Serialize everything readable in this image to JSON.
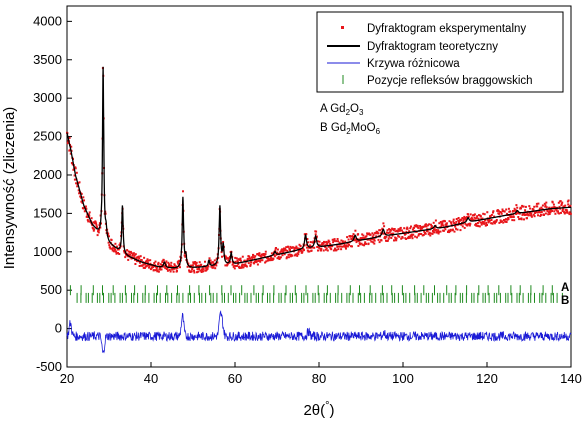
{
  "chart_data": {
    "type": "line",
    "xlabel_main": "2θ(",
    "xlabel_unit": "°",
    "xlabel_close": ")",
    "ylabel": "Intensywność (zliczenia)",
    "xlim": [
      20,
      140
    ],
    "ylim": [
      -500,
      4200
    ],
    "xticks": [
      20,
      40,
      60,
      80,
      100,
      120,
      140
    ],
    "yticks": [
      -500,
      0,
      500,
      1000,
      1500,
      2000,
      2500,
      3000,
      3500,
      4000
    ],
    "legend_position": "top-right",
    "colors": {
      "experimental": "#e8161b",
      "theoretical": "#000000",
      "difference": "#1a1ad6",
      "bragg": "#1f8a1f"
    },
    "legend": [
      "Dyfraktogram eksperymentalny",
      "Dyfraktogram teoretyczny",
      "Krzywa różnicowa",
      "Pozycje refleksów braggowskich"
    ],
    "phases": {
      "A": {
        "letter": "A",
        "label_prefix": "A Gd",
        "sub1": "2",
        "mid": "O",
        "sub2": "3",
        "suffix": "",
        "level": 500
      },
      "B": {
        "letter": "B",
        "label_prefix": "B Gd",
        "sub1": "2",
        "mid": "MoO",
        "sub2": "6",
        "suffix": "",
        "level": 400
      }
    },
    "background": {
      "x": [
        20,
        21,
        22,
        24,
        26,
        28,
        30,
        34,
        38,
        42,
        46,
        50,
        55,
        60,
        65,
        70,
        75,
        80,
        85,
        90,
        95,
        100,
        105,
        110,
        115,
        120,
        125,
        130,
        135,
        140
      ],
      "y": [
        2550,
        2300,
        2000,
        1600,
        1350,
        1200,
        1100,
        950,
        860,
        800,
        780,
        790,
        810,
        840,
        900,
        960,
        1020,
        1060,
        1100,
        1150,
        1200,
        1240,
        1280,
        1320,
        1380,
        1430,
        1480,
        1520,
        1560,
        1580
      ]
    },
    "peaks": [
      {
        "pos": 28.6,
        "height": 2230,
        "width": 0.18
      },
      {
        "pos": 29.3,
        "height": 120,
        "width": 0.2
      },
      {
        "pos": 33.2,
        "height": 620,
        "width": 0.18
      },
      {
        "pos": 43.2,
        "height": 70,
        "width": 0.25
      },
      {
        "pos": 47.6,
        "height": 920,
        "width": 0.2
      },
      {
        "pos": 48.3,
        "height": 140,
        "width": 0.2
      },
      {
        "pos": 53.8,
        "height": 80,
        "width": 0.2
      },
      {
        "pos": 56.4,
        "height": 770,
        "width": 0.2
      },
      {
        "pos": 57.2,
        "height": 250,
        "width": 0.2
      },
      {
        "pos": 59.1,
        "height": 150,
        "width": 0.22
      },
      {
        "pos": 69.5,
        "height": 50,
        "width": 0.25
      },
      {
        "pos": 76.8,
        "height": 180,
        "width": 0.28
      },
      {
        "pos": 79.2,
        "height": 150,
        "width": 0.28
      },
      {
        "pos": 88.6,
        "height": 80,
        "width": 0.3
      },
      {
        "pos": 95.3,
        "height": 90,
        "width": 0.3
      },
      {
        "pos": 107.6,
        "height": 40,
        "width": 0.3
      },
      {
        "pos": 115.5,
        "height": 60,
        "width": 0.3
      },
      {
        "pos": 127.2,
        "height": 40,
        "width": 0.3
      }
    ],
    "difference_peaks": [
      {
        "pos": 20.8,
        "height": 170
      },
      {
        "pos": 28.6,
        "height": -230
      },
      {
        "pos": 47.5,
        "height": 260
      },
      {
        "pos": 56.5,
        "height": 250
      },
      {
        "pos": 57.0,
        "height": 150
      },
      {
        "pos": 77.5,
        "height": 60
      },
      {
        "pos": 95.5,
        "height": 40
      }
    ],
    "difference_baseline": -100
  }
}
